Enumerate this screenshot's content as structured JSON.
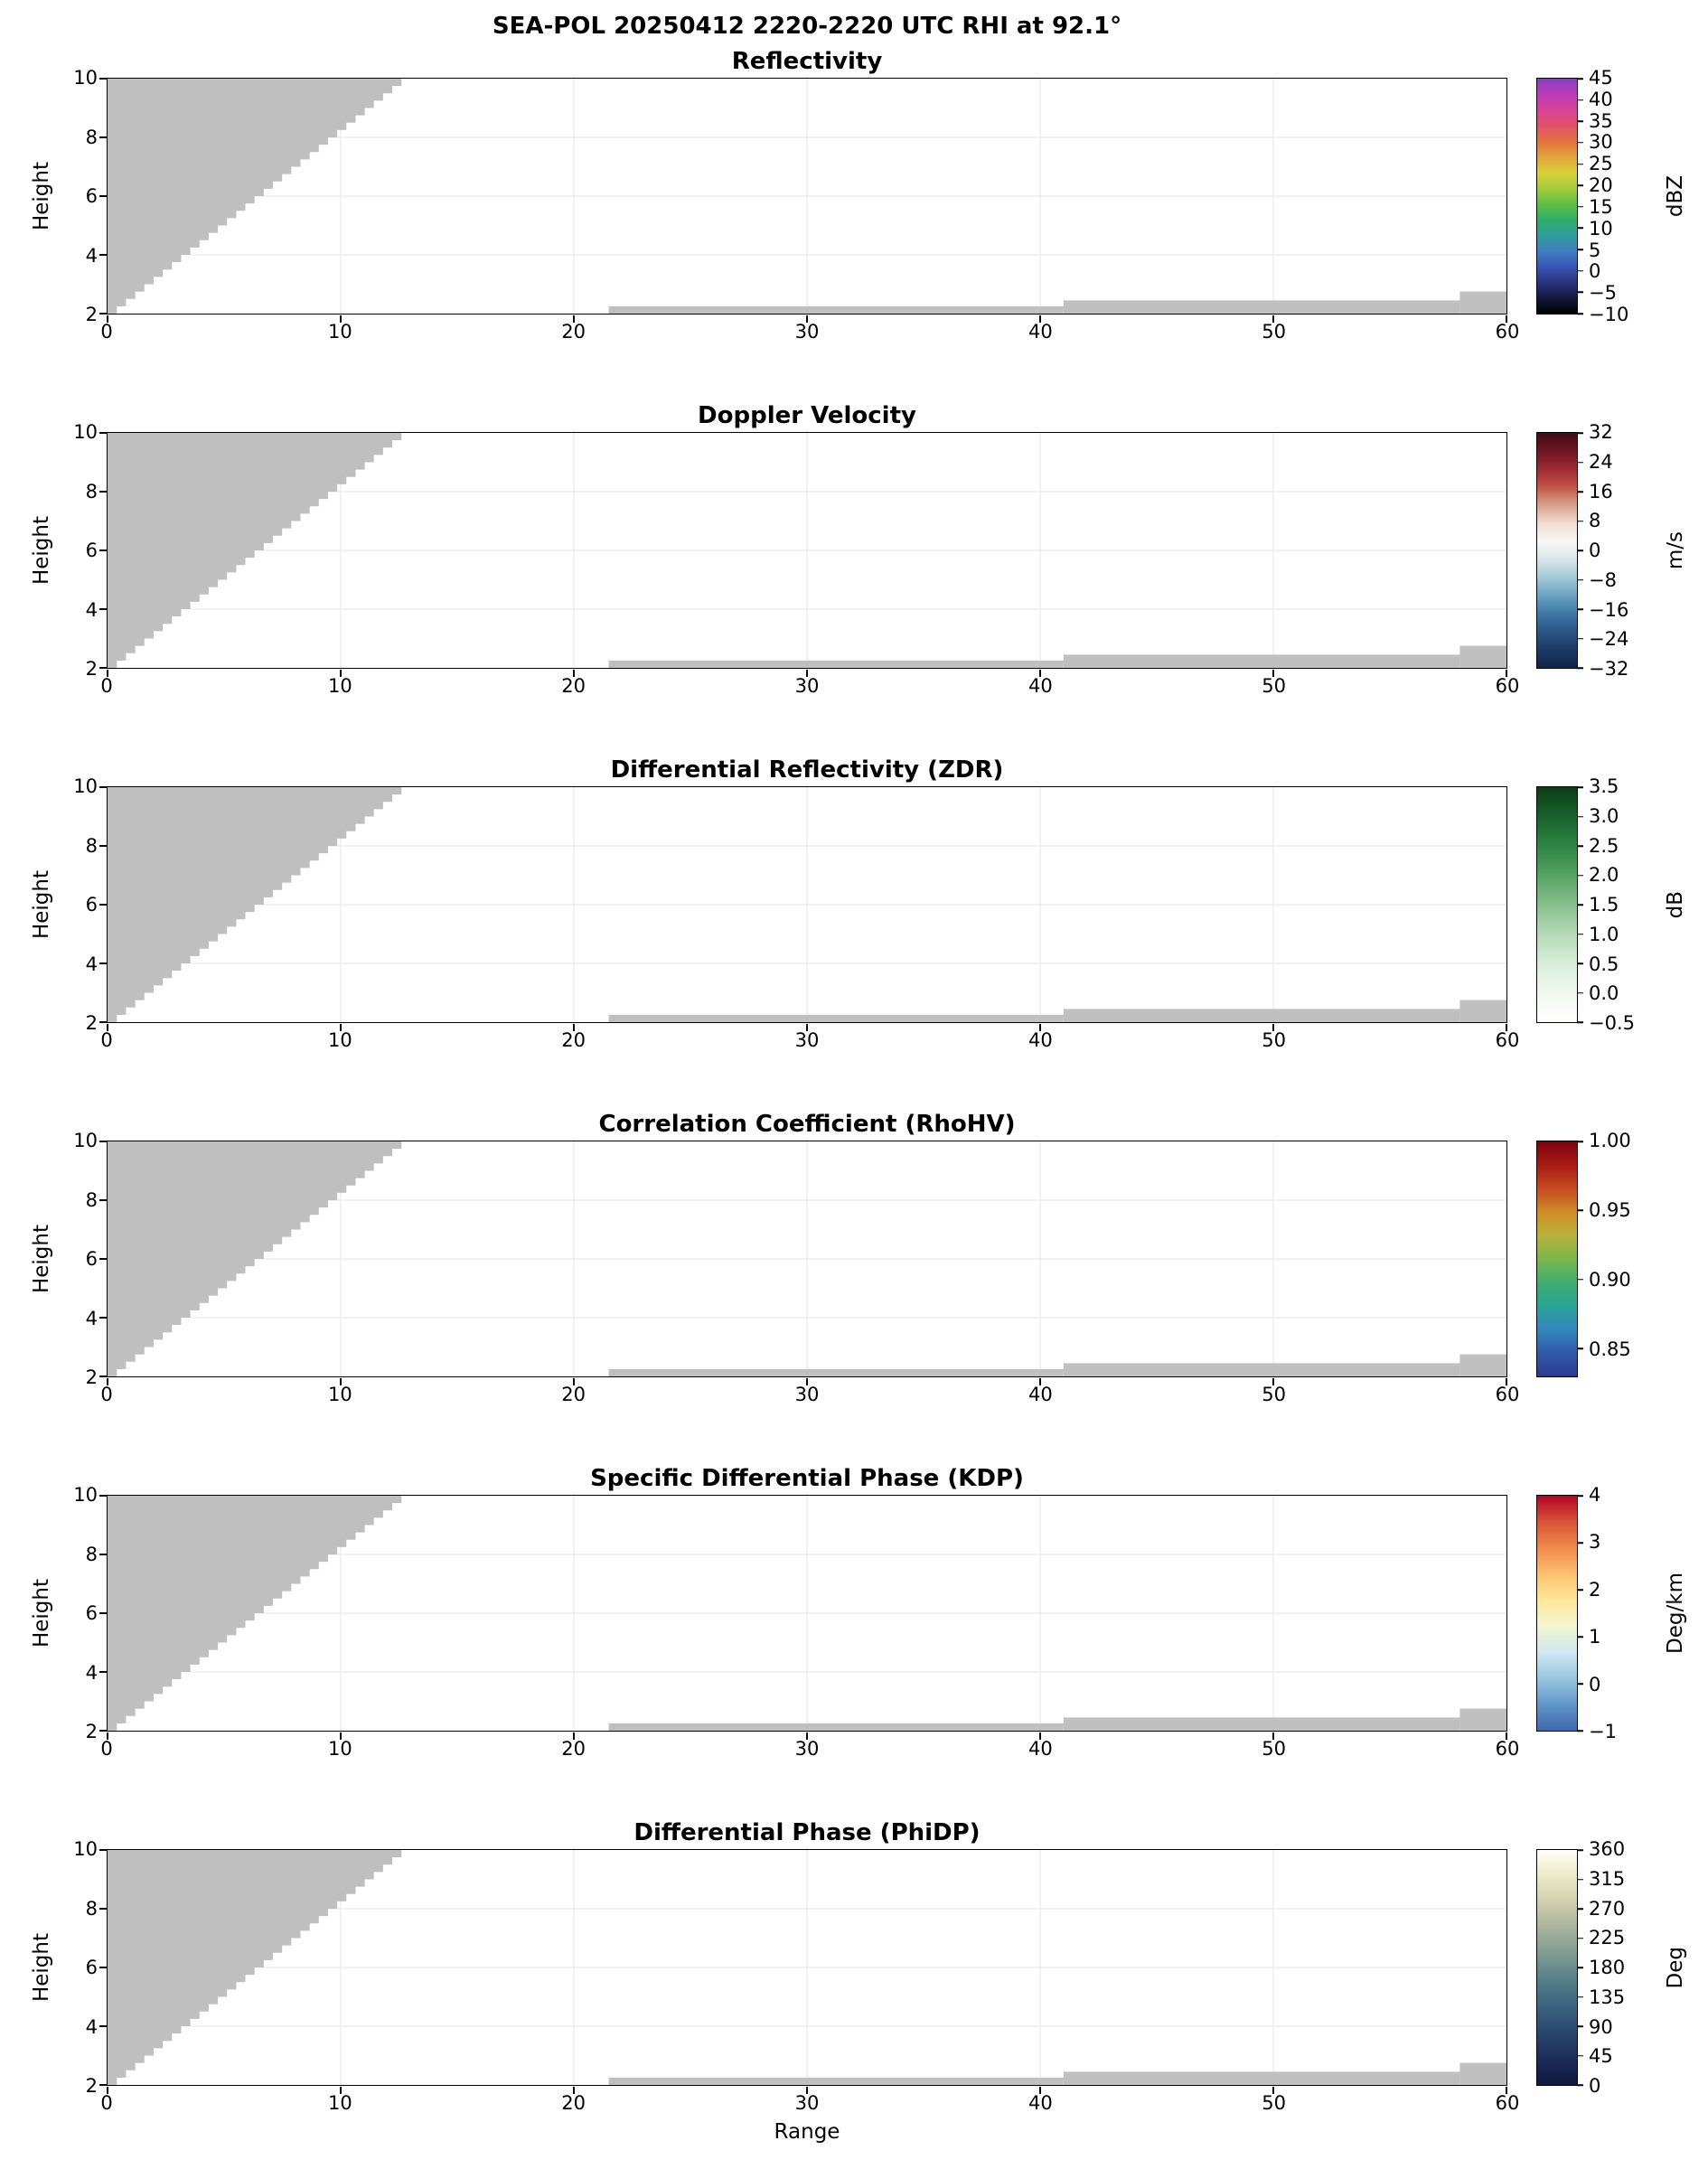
{
  "chart_data": {
    "type": "heatmap",
    "suptitle": "SEA-POL 20250412 2220-2220 UTC RHI at 92.1°",
    "content_note": "Six-panel RHI radar cross-section; every field shows only gray masked/no-data regions (no colored echoes visible).",
    "axes": {
      "xlabel": "Range",
      "ylabel": "Height",
      "xlim": [
        0,
        60
      ],
      "ylim": [
        2,
        10
      ],
      "x_ticks": [
        0,
        10,
        20,
        30,
        40,
        50,
        60
      ],
      "y_ticks": [
        2,
        4,
        6,
        8,
        10
      ],
      "grid": true
    },
    "mask_color": "#bfbfbf",
    "grid_color": "#e4e4e4",
    "frame_color": "#000000",
    "mask_regions": {
      "beam_blockage_wedge": {
        "description": "gray staircase wedge in the upper-left of every panel",
        "x_left": 0,
        "edge_start": [
          0.4,
          2.0
        ],
        "edge_end": [
          13,
          10
        ],
        "steps": 32
      },
      "ground_strips": [
        {
          "x1": 21.5,
          "x2": 41,
          "y1": 2,
          "y2": 2.25
        },
        {
          "x1": 41,
          "x2": 58,
          "y1": 2,
          "y2": 2.45
        },
        {
          "x1": 58,
          "x2": 60,
          "y1": 2,
          "y2": 2.75
        }
      ]
    },
    "panels": [
      {
        "title": "Reflectivity",
        "unit": "dBZ",
        "vmin": -10,
        "vmax": 45,
        "cb_tick_values": [
          45,
          40,
          35,
          30,
          25,
          20,
          15,
          10,
          5,
          0,
          -5,
          -10
        ],
        "cb_tick_labels": [
          "45",
          "40",
          "35",
          "30",
          "25",
          "20",
          "15",
          "10",
          "5",
          "0",
          "−5",
          "−10"
        ],
        "cb_colors_top_to_bottom": [
          "#8a3fc6",
          "#bb3cba",
          "#d84397",
          "#e25069",
          "#e4723e",
          "#e2a43a",
          "#d9d038",
          "#a6cc3a",
          "#5dbf44",
          "#2fae69",
          "#2f9d9d",
          "#3f7fc2",
          "#3956b5",
          "#2a3480",
          "#15193f",
          "#000000"
        ]
      },
      {
        "title": "Doppler Velocity",
        "unit": "m/s",
        "vmin": -32,
        "vmax": 32,
        "cb_tick_values": [
          32,
          24,
          16,
          8,
          0,
          -8,
          -16,
          -24,
          -32
        ],
        "cb_tick_labels": [
          "32",
          "24",
          "16",
          "8",
          "0",
          "−8",
          "−16",
          "−24",
          "−32"
        ],
        "cb_colors_top_to_bottom": [
          "#400d17",
          "#6e1524",
          "#9d2a33",
          "#c25548",
          "#d9a28b",
          "#f0dcd0",
          "#f7f7f5",
          "#d8e6ea",
          "#a4cad8",
          "#6aa2c0",
          "#3f78a6",
          "#2a5684",
          "#1c3a66",
          "#122448"
        ]
      },
      {
        "title": "Differential Reflectivity (ZDR)",
        "unit": "dB",
        "vmin": -0.5,
        "vmax": 3.5,
        "cb_tick_values": [
          3.5,
          3.0,
          2.5,
          2.0,
          1.5,
          1.0,
          0.5,
          0.0,
          -0.5
        ],
        "cb_tick_labels": [
          "3.5",
          "3.0",
          "2.5",
          "2.0",
          "1.5",
          "1.0",
          "0.5",
          "0.0",
          "−0.5"
        ],
        "cb_colors_top_to_bottom": [
          "#0a3d17",
          "#17612c",
          "#2d8544",
          "#56a364",
          "#87bf8d",
          "#b5d9b7",
          "#d9edda",
          "#f0f8f0",
          "#ffffff"
        ]
      },
      {
        "title": "Correlation Coefficient (RhoHV)",
        "unit": "",
        "vmin": 0.83,
        "vmax": 1.0,
        "cb_tick_values": [
          1.0,
          0.95,
          0.9,
          0.85
        ],
        "cb_tick_labels": [
          "1.00",
          "0.95",
          "0.90",
          "0.85"
        ],
        "cb_colors_top_to_bottom": [
          "#7d000d",
          "#a81a14",
          "#c54a1e",
          "#cf8c28",
          "#b8b23a",
          "#7ab74a",
          "#3fae6e",
          "#2aa396",
          "#3386bd",
          "#2f5aa8",
          "#2e3b8f"
        ]
      },
      {
        "title": "Specific Differential Phase (KDP)",
        "unit": "Deg/km",
        "vmin": -1,
        "vmax": 4,
        "cb_tick_values": [
          4,
          3,
          2,
          1,
          0,
          -1
        ],
        "cb_tick_labels": [
          "4",
          "3",
          "2",
          "1",
          "0",
          "−1"
        ],
        "cb_colors_top_to_bottom": [
          "#b40426",
          "#d85337",
          "#f08a4b",
          "#fdc070",
          "#fee79a",
          "#f2f5d0",
          "#cfe7f0",
          "#98c6e0",
          "#6296c8",
          "#3f68ae"
        ]
      },
      {
        "title": "Differential Phase (PhiDP)",
        "unit": "Deg",
        "vmin": 0,
        "vmax": 360,
        "cb_tick_values": [
          360,
          315,
          270,
          225,
          180,
          135,
          90,
          45,
          0
        ],
        "cb_tick_labels": [
          "360",
          "315",
          "270",
          "225",
          "180",
          "135",
          "90",
          "45",
          "0"
        ],
        "cb_colors_top_to_bottom": [
          "#fefef8",
          "#ecebc8",
          "#cfcfae",
          "#a8b29c",
          "#7d9b92",
          "#567f88",
          "#3b637f",
          "#2a476e",
          "#1c2c58",
          "#101840"
        ]
      }
    ]
  }
}
